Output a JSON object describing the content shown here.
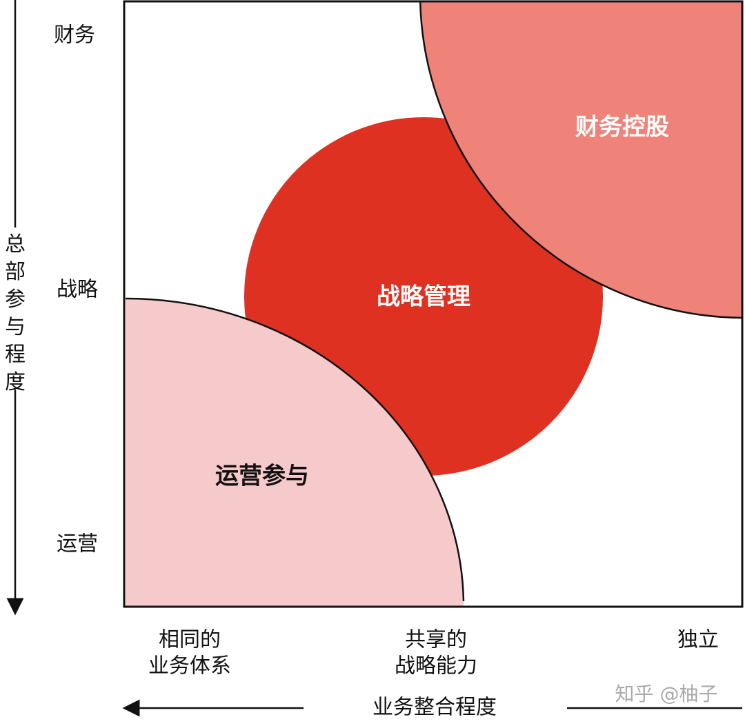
{
  "y_axis": {
    "title": "总部参与程度",
    "levels": [
      "财务",
      "战略",
      "运营"
    ]
  },
  "x_axis": {
    "title": "业务整合程度",
    "levels": [
      [
        "相同的",
        "业务体系"
      ],
      [
        "共享的",
        "战略能力"
      ],
      [
        "独立"
      ]
    ]
  },
  "regions": [
    "运营参与",
    "战略管理",
    "财务控股"
  ],
  "watermark": "知乎 @柚子"
}
